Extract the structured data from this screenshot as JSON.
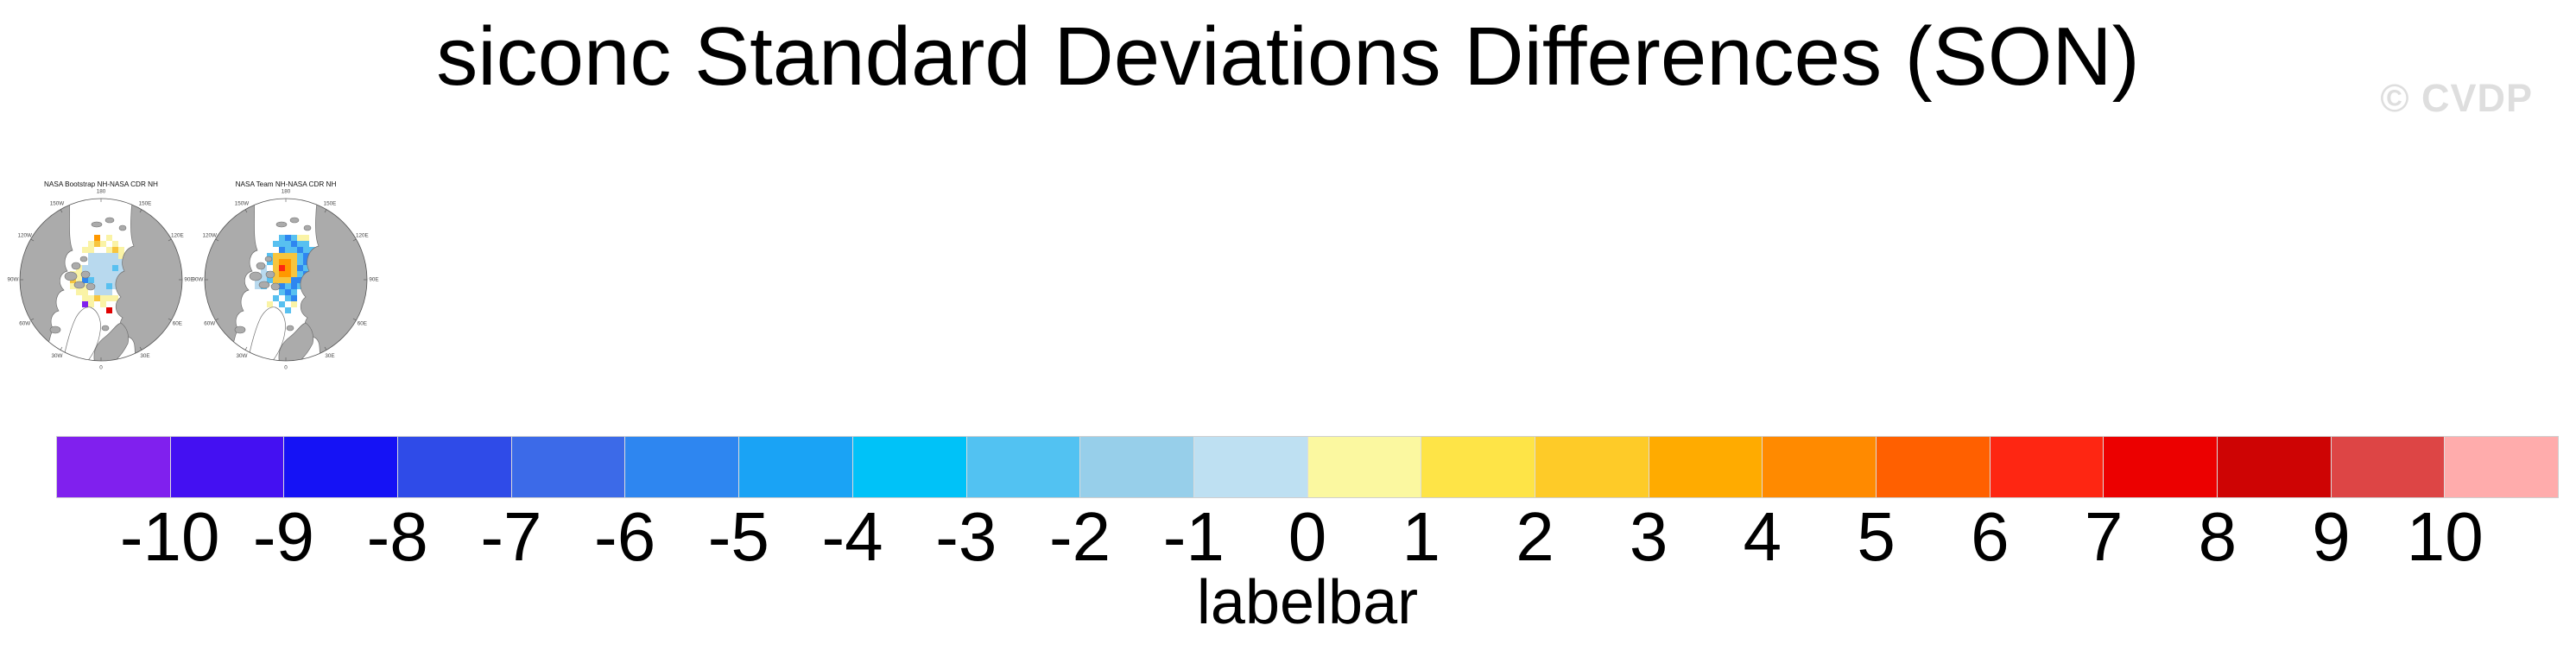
{
  "header": {
    "title": "siconc Standard Deviations Differences (SON)",
    "watermark": "© CVDP"
  },
  "panels": [
    {
      "title": "NASA Bootstrap NH-NASA CDR NH",
      "cells": [
        [
          6,
          2,
          "o"
        ],
        [
          8,
          2,
          "y"
        ],
        [
          5,
          3,
          "y"
        ],
        [
          6,
          3,
          "g"
        ],
        [
          7,
          3,
          "y"
        ],
        [
          9,
          3,
          "y"
        ],
        [
          4,
          4,
          "y"
        ],
        [
          5,
          4,
          "y"
        ],
        [
          8,
          4,
          "y"
        ],
        [
          9,
          4,
          "g"
        ],
        [
          10,
          4,
          "y"
        ],
        [
          5,
          5,
          "p"
        ],
        [
          6,
          5,
          "p"
        ],
        [
          7,
          5,
          "p"
        ],
        [
          8,
          5,
          "p"
        ],
        [
          9,
          5,
          "p"
        ],
        [
          10,
          5,
          "y"
        ],
        [
          11,
          5,
          "g"
        ],
        [
          5,
          6,
          "p"
        ],
        [
          6,
          6,
          "p"
        ],
        [
          7,
          6,
          "p"
        ],
        [
          8,
          6,
          "p"
        ],
        [
          9,
          6,
          "p"
        ],
        [
          10,
          6,
          "p"
        ],
        [
          11,
          6,
          "g"
        ],
        [
          3,
          7,
          "y"
        ],
        [
          4,
          7,
          "p"
        ],
        [
          5,
          7,
          "p"
        ],
        [
          6,
          7,
          "p"
        ],
        [
          7,
          7,
          "p"
        ],
        [
          8,
          7,
          "p"
        ],
        [
          9,
          7,
          "s"
        ],
        [
          10,
          7,
          "p"
        ],
        [
          11,
          7,
          "y"
        ],
        [
          2,
          8,
          "y"
        ],
        [
          3,
          8,
          "y"
        ],
        [
          4,
          8,
          "p"
        ],
        [
          5,
          8,
          "p"
        ],
        [
          6,
          8,
          "p"
        ],
        [
          7,
          8,
          "p"
        ],
        [
          8,
          8,
          "p"
        ],
        [
          9,
          8,
          "p"
        ],
        [
          10,
          8,
          "p"
        ],
        [
          11,
          8,
          "p"
        ],
        [
          12,
          8,
          "y"
        ],
        [
          2,
          9,
          "g"
        ],
        [
          3,
          9,
          "y"
        ],
        [
          4,
          9,
          "m"
        ],
        [
          5,
          9,
          "s"
        ],
        [
          6,
          9,
          "p"
        ],
        [
          7,
          9,
          "p"
        ],
        [
          8,
          9,
          "p"
        ],
        [
          9,
          9,
          "p"
        ],
        [
          10,
          9,
          "p"
        ],
        [
          11,
          9,
          "y"
        ],
        [
          2,
          10,
          "y"
        ],
        [
          3,
          10,
          "y"
        ],
        [
          4,
          10,
          "y"
        ],
        [
          6,
          10,
          "p"
        ],
        [
          7,
          10,
          "p"
        ],
        [
          8,
          10,
          "s"
        ],
        [
          9,
          10,
          "p"
        ],
        [
          10,
          10,
          "y"
        ],
        [
          3,
          11,
          "y"
        ],
        [
          4,
          11,
          "y"
        ],
        [
          6,
          11,
          "p"
        ],
        [
          7,
          11,
          "p"
        ],
        [
          8,
          11,
          "p"
        ],
        [
          4,
          12,
          "y"
        ],
        [
          5,
          12,
          "y"
        ],
        [
          6,
          12,
          "g"
        ],
        [
          7,
          12,
          "y"
        ],
        [
          8,
          12,
          "y"
        ],
        [
          9,
          12,
          "y"
        ],
        [
          4,
          13,
          "v"
        ],
        [
          5,
          13,
          "y"
        ],
        [
          7,
          13,
          "y"
        ],
        [
          8,
          14,
          "r"
        ]
      ]
    },
    {
      "title": "NASA Team NH-NASA CDR NH",
      "cells": [
        [
          6,
          2,
          "s"
        ],
        [
          7,
          2,
          "m"
        ],
        [
          8,
          2,
          "s"
        ],
        [
          9,
          2,
          "y"
        ],
        [
          10,
          2,
          "y"
        ],
        [
          5,
          3,
          "s"
        ],
        [
          6,
          3,
          "s"
        ],
        [
          7,
          3,
          "s"
        ],
        [
          8,
          3,
          "m"
        ],
        [
          9,
          3,
          "s"
        ],
        [
          10,
          3,
          "s"
        ],
        [
          6,
          4,
          "m"
        ],
        [
          7,
          4,
          "s"
        ],
        [
          8,
          4,
          "s"
        ],
        [
          9,
          4,
          "m"
        ],
        [
          10,
          4,
          "s"
        ],
        [
          11,
          4,
          "s"
        ],
        [
          4,
          5,
          "s"
        ],
        [
          5,
          5,
          "g"
        ],
        [
          6,
          5,
          "g"
        ],
        [
          7,
          5,
          "g"
        ],
        [
          8,
          5,
          "g"
        ],
        [
          9,
          5,
          "s"
        ],
        [
          10,
          5,
          "m"
        ],
        [
          4,
          6,
          "s"
        ],
        [
          5,
          6,
          "g"
        ],
        [
          6,
          6,
          "o"
        ],
        [
          7,
          6,
          "o"
        ],
        [
          8,
          6,
          "g"
        ],
        [
          9,
          6,
          "s"
        ],
        [
          10,
          6,
          "m"
        ],
        [
          11,
          6,
          "s"
        ],
        [
          3,
          7,
          "p"
        ],
        [
          5,
          7,
          "g"
        ],
        [
          6,
          7,
          "R"
        ],
        [
          7,
          7,
          "o"
        ],
        [
          8,
          7,
          "g"
        ],
        [
          9,
          7,
          "m"
        ],
        [
          10,
          7,
          "s"
        ],
        [
          3,
          8,
          "p"
        ],
        [
          4,
          8,
          "s"
        ],
        [
          5,
          8,
          "g"
        ],
        [
          6,
          8,
          "o"
        ],
        [
          7,
          8,
          "o"
        ],
        [
          8,
          8,
          "g"
        ],
        [
          9,
          8,
          "s"
        ],
        [
          10,
          8,
          "m"
        ],
        [
          11,
          8,
          "s"
        ],
        [
          2,
          9,
          "p"
        ],
        [
          3,
          9,
          "p"
        ],
        [
          4,
          9,
          "s"
        ],
        [
          5,
          9,
          "g"
        ],
        [
          6,
          9,
          "g"
        ],
        [
          7,
          9,
          "g"
        ],
        [
          8,
          9,
          "m"
        ],
        [
          9,
          9,
          "m"
        ],
        [
          10,
          9,
          "s"
        ],
        [
          2,
          10,
          "p"
        ],
        [
          3,
          10,
          "s"
        ],
        [
          5,
          10,
          "s"
        ],
        [
          6,
          10,
          "m"
        ],
        [
          7,
          10,
          "s"
        ],
        [
          8,
          10,
          "m"
        ],
        [
          9,
          10,
          "s"
        ],
        [
          6,
          11,
          "s"
        ],
        [
          7,
          11,
          "m"
        ],
        [
          8,
          11,
          "s"
        ],
        [
          5,
          12,
          "s"
        ],
        [
          7,
          12,
          "s"
        ],
        [
          8,
          12,
          "m"
        ],
        [
          4,
          13,
          "y"
        ],
        [
          6,
          13,
          "s"
        ],
        [
          8,
          13,
          "y"
        ],
        [
          7,
          14,
          "s"
        ]
      ]
    }
  ],
  "ring_labels": [
    "180",
    "150E",
    "120E",
    "90E",
    "60E",
    "30E",
    "0",
    "30W",
    "60W",
    "90W",
    "120W",
    "150W"
  ],
  "map_colors": {
    "land": "#ABABAB",
    "coast": "#707070",
    "ocean": "#FFFFFF",
    "greenland": "#FFFFFF",
    "circle": "#555555"
  },
  "cell_palette": {
    "p": "#B8D9EE",
    "s": "#58C0F0",
    "m": "#2E86F0",
    "y": "#FAF3A6",
    "g": "#F7C53E",
    "o": "#FF9800",
    "d": "#FF6000",
    "R": "#FE2612",
    "r": "#E00000",
    "v": "#8020EE"
  },
  "labelbar": {
    "title": "labelbar",
    "ticks": [
      "-10",
      "-9",
      "-8",
      "-7",
      "-6",
      "-5",
      "-4",
      "-3",
      "-2",
      "-1",
      "0",
      "1",
      "2",
      "3",
      "4",
      "5",
      "6",
      "7",
      "8",
      "9",
      "10"
    ],
    "colors": [
      "#8020EE",
      "#4410F2",
      "#1512F5",
      "#2F4BE8",
      "#3C6AE8",
      "#2E86F0",
      "#1AA3F5",
      "#00C2F8",
      "#52C2F2",
      "#97CFEA",
      "#BEE0F2",
      "#FBF8A0",
      "#FEE447",
      "#FECB28",
      "#FFAB00",
      "#FF8A00",
      "#FF6000",
      "#FE2612",
      "#EC0000",
      "#CE0404",
      "#DD4545",
      "#FFACAC"
    ]
  },
  "chart_data": {
    "type": "heatmap",
    "title": "siconc Standard Deviations Differences (SON)",
    "watermark": "© CVDP",
    "panels": [
      "NASA Bootstrap NH-NASA CDR NH",
      "NASA Team NH-NASA CDR NH"
    ],
    "projection": "north-polar-stereographic",
    "projection_ring_labels": [
      "180",
      "150E",
      "120E",
      "90E",
      "60E",
      "30E",
      "0",
      "30W",
      "60W",
      "90W",
      "120W",
      "150W"
    ],
    "colorbar_label": "labelbar",
    "colorbar_ticks": [
      -10,
      -9,
      -8,
      -7,
      -6,
      -5,
      -4,
      -3,
      -2,
      -1,
      0,
      1,
      2,
      3,
      4,
      5,
      6,
      7,
      8,
      9,
      10
    ],
    "colorbar_colors": [
      "#8020EE",
      "#4410F2",
      "#1512F5",
      "#2F4BE8",
      "#3C6AE8",
      "#2E86F0",
      "#1AA3F5",
      "#00C2F8",
      "#52C2F2",
      "#97CFEA",
      "#BEE0F2",
      "#FBF8A0",
      "#FEE447",
      "#FECB28",
      "#FFAB00",
      "#FF8A00",
      "#FF6000",
      "#FE2612",
      "#EC0000",
      "#CE0404",
      "#DD4545",
      "#FFACAC"
    ],
    "legend_position": "bottom",
    "grid": false
  }
}
